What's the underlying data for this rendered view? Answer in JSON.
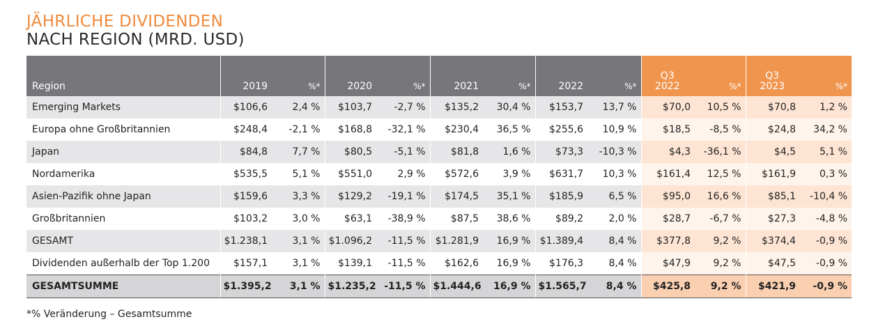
{
  "header": {
    "title": "JÄHRLICHE DIVIDENDEN",
    "subtitle": "NACH REGION (MRD. USD)"
  },
  "table": {
    "columns": [
      "Region",
      "2019",
      "%*",
      "2020",
      "%*",
      "2021",
      "%*",
      "2022",
      "%*",
      "Q3\n2022",
      "%*",
      "Q3\n2023",
      "%*"
    ],
    "rows": [
      [
        "Emerging Markets",
        "$106,6",
        "2,4 %",
        "$103,7",
        "-2,7 %",
        "$135,2",
        "30,4 %",
        "$153,7",
        "13,7 %",
        "$70,0",
        "10,5 %",
        "$70,8",
        "1,2 %"
      ],
      [
        "Europa ohne Großbritannien",
        "$248,4",
        "-2,1 %",
        "$168,8",
        "-32,1 %",
        "$230,4",
        "36,5 %",
        "$255,6",
        "10,9 %",
        "$18,5",
        "-8,5 %",
        "$24,8",
        "34,2 %"
      ],
      [
        "Japan",
        "$84,8",
        "7,7 %",
        "$80,5",
        "-5,1 %",
        "$81,8",
        "1,6 %",
        "$73,3",
        "-10,3 %",
        "$4,3",
        "-36,1 %",
        "$4,5",
        "5,1 %"
      ],
      [
        "Nordamerika",
        "$535,5",
        "5,1 %",
        "$551,0",
        "2,9 %",
        "$572,6",
        "3,9 %",
        "$631,7",
        "10,3 %",
        "$161,4",
        "12,5 %",
        "$161,9",
        "0,3 %"
      ],
      [
        "Asien-Pazifik ohne Japan",
        "$159,6",
        "3,3 %",
        "$129,2",
        "-19,1 %",
        "$174,5",
        "35,1 %",
        "$185,9",
        "6,5 %",
        "$95,0",
        "16,6 %",
        "$85,1",
        "-10,4 %"
      ],
      [
        "Großbritannien",
        "$103,2",
        "3,0 %",
        "$63,1",
        "-38,9 %",
        "$87,5",
        "38,6 %",
        "$89,2",
        "2,0 %",
        "$28,7",
        "-6,7 %",
        "$27,3",
        "-4,8 %"
      ],
      [
        "GESAMT",
        "$1.238,1",
        "3,1 %",
        "$1.096,2",
        "-11,5 %",
        "$1.281,9",
        "16,9 %",
        "$1.389,4",
        "8,4 %",
        "$377,8",
        "9,2 %",
        "$374,4",
        "-0,9 %"
      ],
      [
        "Dividenden außerhalb der Top 1.200",
        "$157,1",
        "3,1 %",
        "$139,1",
        "-11,5 %",
        "$162,6",
        "16,9 %",
        "$176,3",
        "8,4 %",
        "$47,9",
        "9,2 %",
        "$47,5",
        "-0,9 %"
      ],
      [
        "GESAMTSUMME",
        "$1.395,2",
        "3,1 %",
        "$1.235,2",
        "-11,5 %",
        "$1.444,6",
        "16,9 %",
        "$1.565,7",
        "8,4 %",
        "$425,8",
        "9,2 %",
        "$421,9",
        "-0,9 %"
      ]
    ]
  },
  "footnote": "*% Veränderung – Gesamtsumme"
}
